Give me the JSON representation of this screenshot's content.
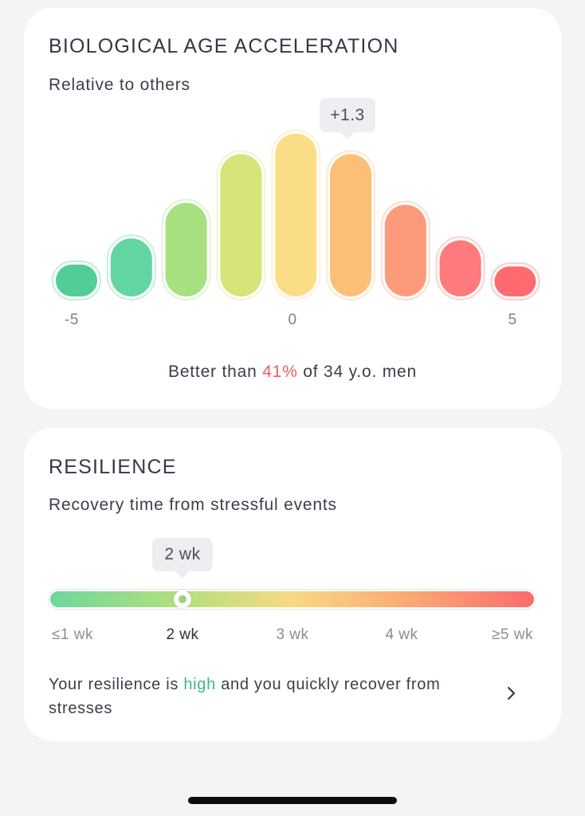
{
  "bio_card": {
    "title": "BIOLOGICAL AGE ACCELERATION",
    "subtitle": "Relative to others",
    "tooltip": "+1.3",
    "footer": {
      "prefix": "Better than ",
      "highlight": "41%",
      "suffix": " of 34 y.o. men",
      "highlight_color": "#ee5d62"
    }
  },
  "chart_data": {
    "type": "bar",
    "title": "",
    "xlabel": "",
    "ylabel": "",
    "x_tick_labels": [
      {
        "value": -5,
        "label": "-5"
      },
      {
        "value": 0,
        "label": "0"
      },
      {
        "value": 5,
        "label": "5"
      }
    ],
    "categories": [
      -4,
      -3,
      -2,
      -1,
      0,
      1,
      2,
      3,
      4
    ],
    "values": [
      0.17,
      0.31,
      0.5,
      0.76,
      0.87,
      0.76,
      0.49,
      0.3,
      0.16
    ],
    "colors": [
      "#52cd95",
      "#62d5a2",
      "#a6e07f",
      "#d6e479",
      "#fbdd88",
      "#fcbf75",
      "#fd9a7c",
      "#fe7a7c",
      "#ff6a6e"
    ],
    "highlighted_category": 1,
    "highlight_label": "+1.3",
    "ylim": [
      0,
      1
    ],
    "grid": false,
    "legend": "none"
  },
  "res_card": {
    "title": "RESILIENCE",
    "subtitle": "Recovery time from stressful events",
    "tooltip": "2 wk",
    "ticks": [
      "≤1 wk",
      "2 wk",
      "3 wk",
      "4 wk",
      "≥5 wk"
    ],
    "selected_tick": 1,
    "level": 0.275,
    "desc": {
      "prefix": "Your resilience is ",
      "highlight": "high",
      "suffix": " and you quickly recover from stresses",
      "highlight_color": "#3bb784"
    },
    "chevron_icon": "chevron-right-icon"
  }
}
